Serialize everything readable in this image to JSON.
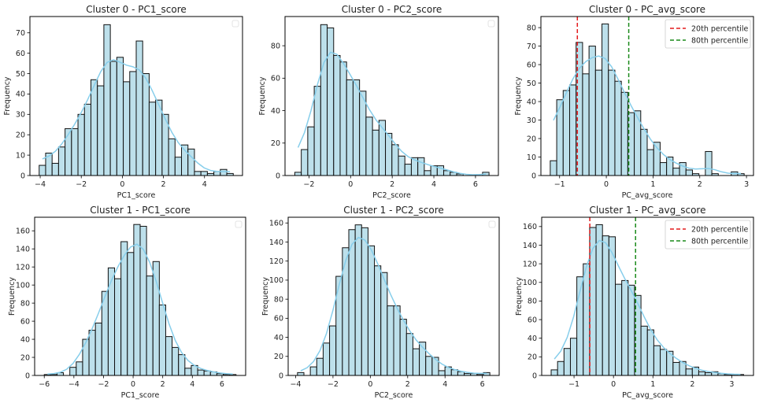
{
  "figure": {
    "bar_fill": "#add8e6",
    "bar_edge": "#111111",
    "kde_color": "#87ceeb",
    "p20_color": "#e41a1c",
    "p80_color": "#1a8a1a"
  },
  "chart_data": [
    {
      "type": "bar",
      "title": "Cluster 0 - PC1_score",
      "xlabel": "PC1_score",
      "ylabel": "Frequency",
      "bin_start": -4.05,
      "bin_end": 5.4,
      "values": [
        5,
        11,
        6,
        14,
        23,
        23,
        30,
        35,
        47,
        44,
        74,
        56,
        58,
        46,
        51,
        66,
        50,
        36,
        37,
        30,
        18,
        9,
        15,
        13,
        2,
        2,
        1,
        2,
        3,
        1
      ],
      "xlim": [
        -4.5,
        5.85
      ],
      "ylim": [
        0,
        78
      ],
      "xticks": [
        -4,
        -2,
        0,
        2,
        4
      ],
      "yticks": [
        0,
        10,
        20,
        30,
        40,
        50,
        60,
        70
      ],
      "empty_legend": true,
      "legend": "top-right"
    },
    {
      "type": "bar",
      "title": "Cluster 0 - PC2_score",
      "xlabel": "PC2_score",
      "ylabel": "Frequency",
      "bin_start": -2.68,
      "bin_end": 6.65,
      "values": [
        2,
        16,
        30,
        55,
        93,
        91,
        74,
        70,
        59,
        59,
        52,
        36,
        28,
        34,
        26,
        19,
        12,
        7,
        11,
        11,
        3,
        6,
        6,
        3,
        2,
        1,
        0,
        0,
        0,
        2
      ],
      "xlim": [
        -3.15,
        7.1
      ],
      "ylim": [
        0,
        98
      ],
      "xticks": [
        -2,
        0,
        2,
        4,
        6
      ],
      "yticks": [
        0,
        20,
        40,
        60,
        80
      ],
      "empty_legend": true,
      "legend": "top-right"
    },
    {
      "type": "bar",
      "title": "Cluster 0 - PC_avg_score",
      "xlabel": "PC_avg_score",
      "ylabel": "Frequency",
      "bin_start": -1.2,
      "bin_end": 2.95,
      "values": [
        8,
        41,
        46,
        49,
        72,
        55,
        70,
        57,
        82,
        57,
        51,
        45,
        34,
        35,
        25,
        14,
        18,
        7,
        10,
        4,
        7,
        3,
        1,
        0,
        13,
        1,
        0,
        0,
        2,
        1
      ],
      "xlim": [
        -1.4,
        3.15
      ],
      "ylim": [
        0,
        86
      ],
      "xticks": [
        -1,
        0,
        1,
        2,
        3
      ],
      "yticks": [
        0,
        10,
        20,
        30,
        40,
        50,
        60,
        70,
        80
      ],
      "percentiles": [
        {
          "label": "20th percentile",
          "value": -0.62
        },
        {
          "label": "80th percentile",
          "value": 0.48
        }
      ],
      "legend": "top-right"
    },
    {
      "type": "bar",
      "title": "Cluster 1 - PC1_score",
      "xlabel": "PC1_score",
      "ylabel": "Frequency",
      "bin_start": -6.0,
      "bin_end": 6.95,
      "values": [
        1,
        1,
        3,
        0,
        9,
        15,
        40,
        50,
        58,
        93,
        119,
        107,
        148,
        136,
        167,
        165,
        110,
        126,
        78,
        43,
        31,
        23,
        8,
        11,
        6,
        5,
        4,
        2,
        1,
        1
      ],
      "xlim": [
        -6.65,
        7.6
      ],
      "ylim": [
        0,
        175
      ],
      "xticks": [
        -6,
        -4,
        -2,
        0,
        2,
        4,
        6
      ],
      "yticks": [
        0,
        20,
        40,
        60,
        80,
        100,
        120,
        140,
        160
      ],
      "empty_legend": true,
      "legend": "top-right"
    },
    {
      "type": "bar",
      "title": "Cluster 1 - PC2_score",
      "xlabel": "PC2_score",
      "ylabel": "Frequency",
      "bin_start": -3.9,
      "bin_end": 6.4,
      "values": [
        3,
        0,
        9,
        18,
        34,
        52,
        104,
        134,
        153,
        158,
        155,
        136,
        115,
        108,
        73,
        73,
        59,
        44,
        28,
        35,
        20,
        19,
        5,
        9,
        6,
        4,
        2,
        2,
        1,
        3
      ],
      "xlim": [
        -4.4,
        6.9
      ],
      "ylim": [
        0,
        166
      ],
      "xticks": [
        -4,
        -2,
        0,
        2,
        4,
        6
      ],
      "yticks": [
        0,
        20,
        40,
        60,
        80,
        100,
        120,
        140,
        160
      ],
      "empty_legend": true,
      "legend": "top-right"
    },
    {
      "type": "bar",
      "title": "Cluster 1 - PC_avg_score",
      "xlabel": "PC_avg_score",
      "ylabel": "Frequency",
      "bin_start": -1.58,
      "bin_end": 3.3,
      "values": [
        6,
        15,
        29,
        40,
        106,
        120,
        159,
        162,
        150,
        149,
        98,
        102,
        97,
        86,
        53,
        49,
        32,
        28,
        26,
        14,
        15,
        7,
        9,
        4,
        3,
        4,
        2,
        1,
        1,
        1
      ],
      "xlim": [
        -1.82,
        3.55
      ],
      "ylim": [
        0,
        170
      ],
      "xticks": [
        -1,
        0,
        1,
        2,
        3
      ],
      "yticks": [
        0,
        20,
        40,
        60,
        80,
        100,
        120,
        140,
        160
      ],
      "percentiles": [
        {
          "label": "20th percentile",
          "value": -0.6
        },
        {
          "label": "80th percentile",
          "value": 0.56
        }
      ],
      "legend": "top-right"
    }
  ]
}
